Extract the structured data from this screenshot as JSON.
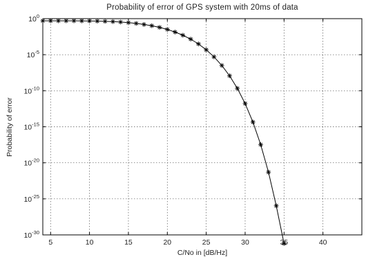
{
  "chart_data": {
    "type": "line",
    "title": "Probability of error of GPS system with 20ms of data",
    "xlabel": "C/No in [dB/Hz]",
    "ylabel": "Probability of error",
    "xlim": [
      4,
      45
    ],
    "ylim_log10": [
      -30,
      0
    ],
    "yscale": "log",
    "grid": true,
    "x_ticks": [
      5,
      10,
      15,
      20,
      25,
      30,
      35,
      40
    ],
    "y_ticks": [
      {
        "base": "10",
        "exp": "0",
        "log10": 0
      },
      {
        "base": "10",
        "exp": "-5",
        "log10": -5
      },
      {
        "base": "10",
        "exp": "-10",
        "log10": -10
      },
      {
        "base": "10",
        "exp": "-15",
        "log10": -15
      },
      {
        "base": "10",
        "exp": "-20",
        "log10": -20
      },
      {
        "base": "10",
        "exp": "-25",
        "log10": -25
      },
      {
        "base": "10",
        "exp": "-30",
        "log10": -30
      }
    ],
    "series": [
      {
        "marker": "asterisk",
        "x": [
          4,
          5,
          6,
          7,
          8,
          9,
          10,
          11,
          12,
          13,
          14,
          15,
          16,
          17,
          18,
          19,
          20,
          21,
          22,
          23,
          24,
          25,
          26,
          27,
          28,
          29,
          30,
          31,
          32,
          33,
          34,
          35
        ],
        "y_log10": [
          -0.3,
          -0.3,
          -0.3,
          -0.3,
          -0.3,
          -0.31,
          -0.32,
          -0.34,
          -0.37,
          -0.41,
          -0.47,
          -0.55,
          -0.66,
          -0.8,
          -0.98,
          -1.21,
          -1.5,
          -1.86,
          -2.3,
          -2.84,
          -3.51,
          -4.32,
          -5.3,
          -6.49,
          -7.93,
          -9.67,
          -11.78,
          -14.35,
          -17.48,
          -21.3,
          -25.96,
          -31.2
        ]
      }
    ]
  }
}
